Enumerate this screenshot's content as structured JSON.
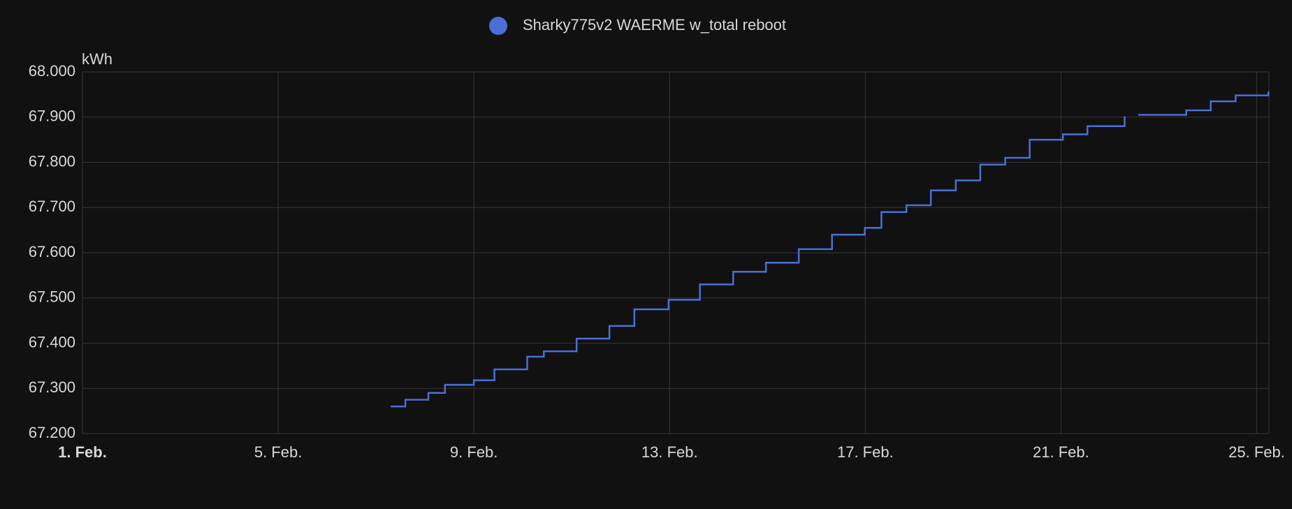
{
  "chart_data": {
    "type": "line",
    "y_unit": "kWh",
    "x": [
      7.3,
      7.6,
      8.07,
      8.41,
      9.0,
      9.42,
      10.09,
      10.43,
      11.1,
      11.77,
      12.28,
      12.98,
      13.62,
      14.3,
      14.97,
      15.64,
      16.32,
      16.99,
      17.33,
      17.84,
      18.34,
      18.85,
      19.35,
      19.86,
      20.36,
      21.04,
      21.54,
      22.3,
      22.45,
      22.58,
      23.56,
      24.06,
      24.57,
      25.24
    ],
    "series": [
      {
        "name": "Sharky775v2 WAERME w_total reboot",
        "color": "#4a6fd8",
        "values": [
          67.26,
          67.275,
          67.29,
          67.308,
          67.318,
          67.342,
          67.37,
          67.382,
          67.41,
          67.438,
          67.475,
          67.496,
          67.53,
          67.558,
          67.578,
          67.608,
          67.64,
          67.655,
          67.69,
          67.705,
          67.738,
          67.76,
          67.795,
          67.81,
          67.85,
          67.862,
          67.88,
          67.902,
          null,
          67.905,
          67.915,
          67.935,
          67.948,
          67.957
        ]
      }
    ],
    "xlim": [
      1,
      25.25
    ],
    "xticks": [
      {
        "value": 1,
        "label": "1. Feb."
      },
      {
        "value": 5,
        "label": "5. Feb."
      },
      {
        "value": 9,
        "label": "9. Feb."
      },
      {
        "value": 13,
        "label": "13. Feb."
      },
      {
        "value": 17,
        "label": "17. Feb."
      },
      {
        "value": 21,
        "label": "21. Feb."
      },
      {
        "value": 25,
        "label": "25. Feb."
      }
    ],
    "ylim": [
      67.2,
      68.0
    ],
    "yticks": [
      {
        "value": 67.2,
        "label": "67.200"
      },
      {
        "value": 67.3,
        "label": "67.300"
      },
      {
        "value": 67.4,
        "label": "67.400"
      },
      {
        "value": 67.5,
        "label": "67.500"
      },
      {
        "value": 67.6,
        "label": "67.600"
      },
      {
        "value": 67.7,
        "label": "67.700"
      },
      {
        "value": 67.8,
        "label": "67.800"
      },
      {
        "value": 67.9,
        "label": "67.900"
      },
      {
        "value": 68.0,
        "label": "68.000"
      }
    ],
    "grid": true
  }
}
